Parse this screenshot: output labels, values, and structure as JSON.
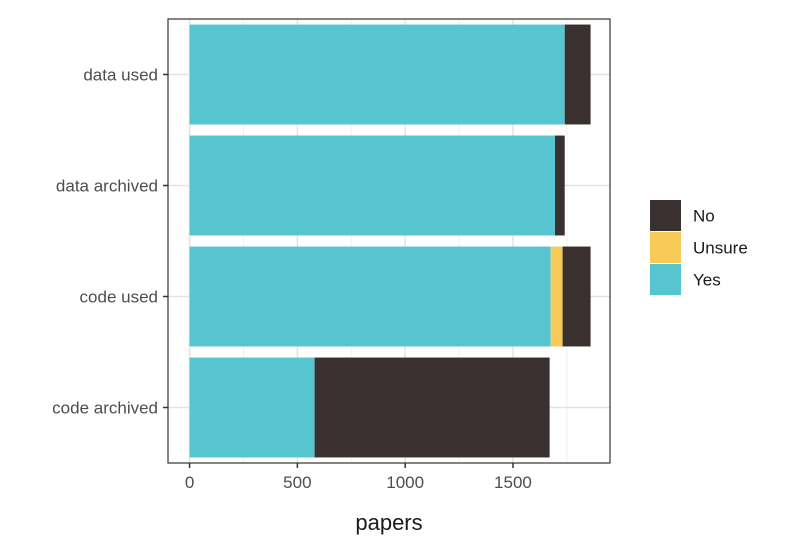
{
  "chart_data": {
    "type": "bar",
    "orientation": "horizontal",
    "stacked": true,
    "categories": [
      "data used",
      "data archived",
      "code used",
      "code archived"
    ],
    "series": [
      {
        "name": "Yes",
        "color": "#56C5D0",
        "values": [
          1740,
          1695,
          1675,
          580
        ]
      },
      {
        "name": "Unsure",
        "color": "#F8CB58",
        "values": [
          0,
          0,
          55,
          0
        ]
      },
      {
        "name": "No",
        "color": "#3A3030",
        "values": [
          120,
          45,
          130,
          1090
        ]
      }
    ],
    "legend_order": [
      "No",
      "Unsure",
      "Yes"
    ],
    "legend_placement": "right",
    "xlabel": "papers",
    "ylabel": "",
    "xlim": [
      -100,
      1950
    ],
    "xticks": [
      0,
      500,
      1000,
      1500
    ],
    "grid": true
  }
}
